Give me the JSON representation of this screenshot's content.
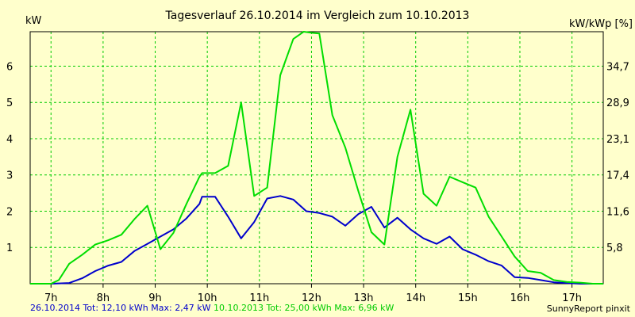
{
  "chart_data": {
    "type": "line",
    "title": "Tagesverlauf 26.10.2014 im Vergleich zum 10.10.2013",
    "ylabel_left": "kW",
    "ylabel_right": "kW/kWp [%]",
    "x_tick_labels": [
      "7h",
      "8h",
      "9h",
      "10h",
      "11h",
      "12h",
      "13h",
      "14h",
      "15h",
      "16h",
      "17h"
    ],
    "x_tick_values": [
      7,
      8,
      9,
      10,
      11,
      12,
      13,
      14,
      15,
      16,
      17
    ],
    "xlim": [
      6.6,
      17.6
    ],
    "y_ticks_left": [
      1,
      2,
      3,
      4,
      5,
      6
    ],
    "y_ticks_left_labels": [
      "1",
      "2",
      "3",
      "4",
      "5",
      "6"
    ],
    "y_ticks_right_labels": [
      "5,8",
      "11,6",
      "17,4",
      "23,1",
      "28,9",
      "34,7"
    ],
    "ylim": [
      0,
      6.95
    ],
    "grid": true,
    "series": [
      {
        "color": "#0000cc",
        "x": [
          6.6,
          7.0,
          7.35,
          7.6,
          7.85,
          8.1,
          8.35,
          8.6,
          8.85,
          9.1,
          9.35,
          9.6,
          9.85,
          9.9,
          10.15,
          10.4,
          10.65,
          10.9,
          11.15,
          11.4,
          11.65,
          11.9,
          12.15,
          12.4,
          12.65,
          12.9,
          13.15,
          13.4,
          13.65,
          13.9,
          14.15,
          14.4,
          14.65,
          14.9,
          15.15,
          15.4,
          15.65,
          15.9,
          16.15,
          16.4,
          16.65,
          16.9,
          17.15,
          17.4,
          17.6
        ],
        "y": [
          0,
          0,
          0.02,
          0.15,
          0.35,
          0.5,
          0.6,
          0.9,
          1.1,
          1.3,
          1.5,
          1.8,
          2.2,
          2.4,
          2.4,
          1.85,
          1.25,
          1.7,
          2.35,
          2.42,
          2.32,
          2.0,
          1.95,
          1.85,
          1.6,
          1.92,
          2.12,
          1.55,
          1.82,
          1.5,
          1.25,
          1.1,
          1.3,
          0.95,
          0.8,
          0.62,
          0.5,
          0.18,
          0.16,
          0.1,
          0.04,
          0.02,
          0,
          0,
          0
        ]
      },
      {
        "color": "#00dd00",
        "x": [
          6.6,
          7.0,
          7.15,
          7.35,
          7.6,
          7.85,
          8.1,
          8.35,
          8.6,
          8.85,
          9.1,
          9.35,
          9.6,
          9.85,
          9.9,
          10.15,
          10.4,
          10.65,
          10.9,
          11.15,
          11.4,
          11.65,
          11.85,
          12.0,
          12.15,
          12.4,
          12.65,
          12.9,
          13.15,
          13.4,
          13.65,
          13.9,
          14.15,
          14.4,
          14.65,
          14.9,
          15.15,
          15.4,
          15.65,
          15.9,
          16.15,
          16.4,
          16.65,
          16.9,
          17.15,
          17.4,
          17.6
        ],
        "y": [
          0,
          0,
          0.1,
          0.55,
          0.8,
          1.08,
          1.2,
          1.35,
          1.78,
          2.15,
          0.95,
          1.4,
          2.2,
          2.95,
          3.05,
          3.05,
          3.25,
          5.0,
          2.42,
          2.65,
          5.75,
          6.75,
          6.95,
          6.92,
          6.9,
          4.65,
          3.75,
          2.55,
          1.42,
          1.08,
          3.5,
          4.8,
          2.48,
          2.15,
          2.95,
          2.8,
          2.65,
          1.85,
          1.3,
          0.75,
          0.35,
          0.3,
          0.1,
          0.05,
          0.03,
          0,
          0
        ]
      }
    ]
  },
  "footer": {
    "blue_text": "26.10.2014 Tot: 12,10 kWh Max: 2,47 kW",
    "green_text": "10.10.2013 Tot: 25,00 kWh Max: 6,96 kW",
    "credit": "SunnyReport pinxit"
  },
  "colors": {
    "background": "#ffffcc",
    "grid": "#00cc00",
    "axis": "#000000"
  }
}
